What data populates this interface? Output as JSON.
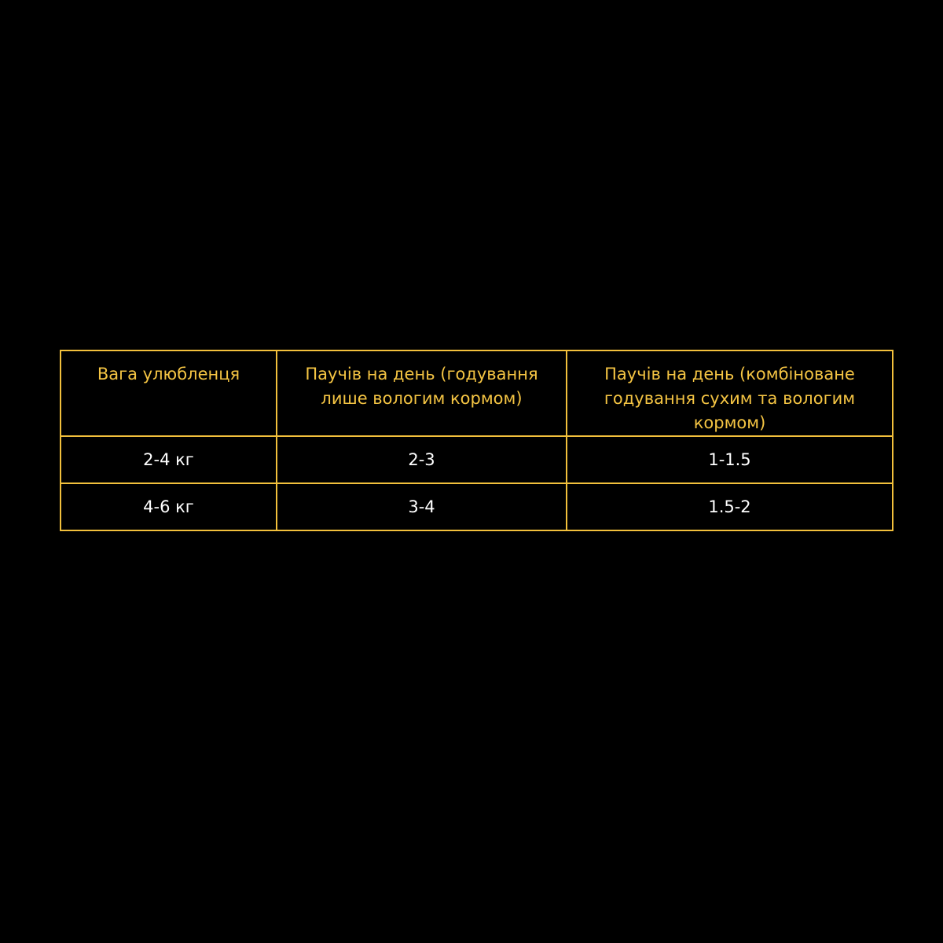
{
  "table": {
    "border_color": "#f2c03c",
    "header_color": "#f4c443",
    "headers": [
      "Вага улюбленця",
      "Паучів на день (годування лише вологим кормом)",
      "Паучів на день (комбіноване годування сухим та вологим кормом)"
    ],
    "rows": [
      [
        "2-4 кг",
        "2-3",
        "1-1.5"
      ],
      [
        "4-6 кг",
        "3-4",
        "1.5-2"
      ]
    ]
  }
}
